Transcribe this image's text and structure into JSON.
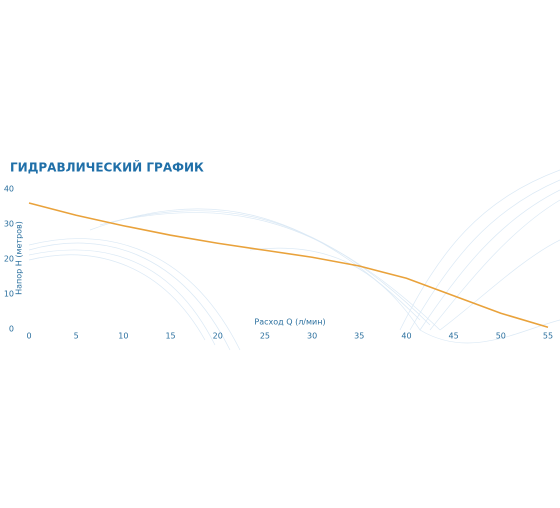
{
  "chart_data": {
    "type": "line",
    "title": "ГИДРАВЛИЧЕСКИЙ ГРАФИК",
    "x_label": "Расход Q (л/мин)",
    "y_label": "Напор H (метров)",
    "x": [
      0,
      5,
      10,
      15,
      20,
      25,
      30,
      35,
      40,
      45,
      50,
      55
    ],
    "series": [
      {
        "name": null,
        "color": "#e9a23b",
        "values": [
          36,
          32.5,
          29.5,
          26.8,
          24.5,
          22.5,
          20.5,
          18,
          14.5,
          9.5,
          4.5,
          0.5
        ]
      }
    ],
    "xlim": [
      0,
      55
    ],
    "xticks": [
      0,
      5,
      10,
      15,
      20,
      25,
      30,
      35,
      40,
      45,
      50,
      55
    ],
    "ylim": [
      0,
      40
    ],
    "yticks": [
      0,
      10,
      20,
      30,
      40
    ],
    "grid": false
  }
}
